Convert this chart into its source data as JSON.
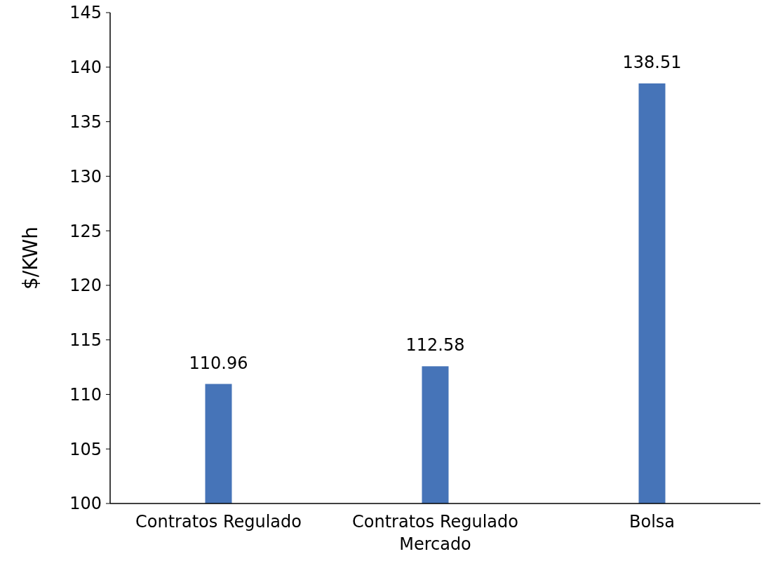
{
  "chart_data": {
    "type": "bar",
    "ylabel": "$/KWh",
    "categories": [
      "Contratos Regulado",
      "Contratos Regulado\nMercado",
      "Bolsa"
    ],
    "values": [
      110.96,
      112.58,
      138.51
    ],
    "color": "#4674b8",
    "ylim": [
      100,
      145
    ],
    "yticks": [
      100,
      105,
      110,
      115,
      120,
      125,
      130,
      135,
      140,
      145
    ],
    "grid": false,
    "data_labels": true
  }
}
